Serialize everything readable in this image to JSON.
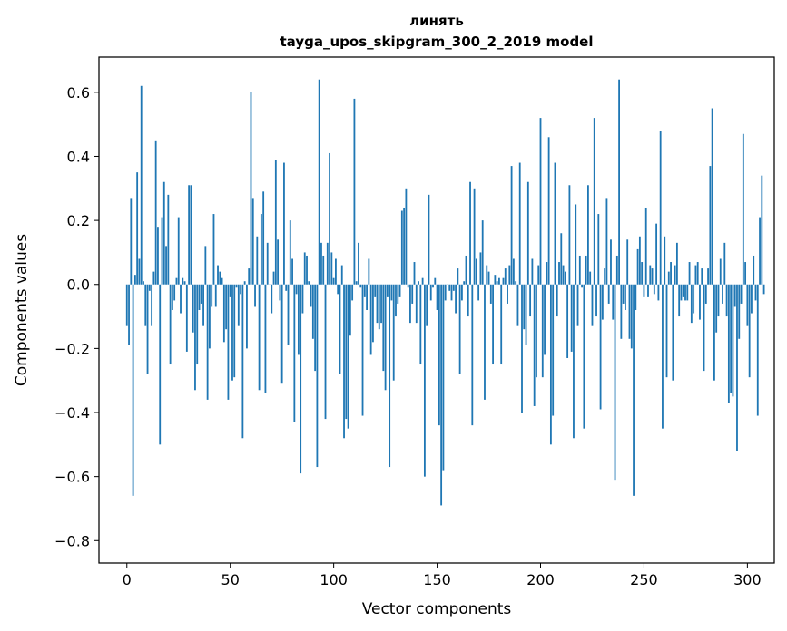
{
  "chart_data": {
    "type": "bar",
    "title": "линять",
    "subtitle": "tayga_upos_skipgram_300_2_2019 model",
    "xlabel": "Vector components",
    "ylabel": "Components values",
    "xlim": [
      -13.5,
      313
    ],
    "ylim": [
      -0.87,
      0.71
    ],
    "xticks": [
      0,
      50,
      100,
      150,
      200,
      250,
      300
    ],
    "xtick_labels": [
      "0",
      "50",
      "100",
      "150",
      "200",
      "250",
      "300"
    ],
    "yticks": [
      0.6,
      0.4,
      0.2,
      0.0,
      -0.2,
      -0.4,
      -0.6,
      -0.8
    ],
    "ytick_labels": [
      "0.6",
      "0.4",
      "0.2",
      "0.0",
      "−0.2",
      "−0.4",
      "−0.6",
      "−0.8"
    ],
    "bar_color": "#1f77b4",
    "grid": false,
    "values": [
      -0.13,
      -0.19,
      0.27,
      -0.66,
      0.03,
      0.35,
      0.08,
      0.62,
      0.01,
      -0.13,
      -0.28,
      -0.02,
      -0.13,
      0.04,
      0.45,
      0.18,
      -0.5,
      0.21,
      0.32,
      0.12,
      0.28,
      -0.25,
      -0.08,
      -0.05,
      0.02,
      0.21,
      -0.09,
      0.02,
      0.01,
      -0.21,
      0.31,
      0.31,
      -0.15,
      -0.33,
      -0.25,
      -0.08,
      -0.06,
      -0.13,
      0.12,
      -0.36,
      -0.2,
      -0.07,
      0.22,
      -0.07,
      0.06,
      0.04,
      0.02,
      -0.18,
      -0.14,
      -0.36,
      -0.04,
      -0.3,
      -0.29,
      -0.01,
      -0.13,
      -0.03,
      -0.48,
      0.01,
      -0.2,
      0.05,
      0.6,
      0.27,
      -0.07,
      0.15,
      -0.33,
      0.22,
      0.29,
      -0.34,
      0.13,
      0.0,
      -0.09,
      0.04,
      0.39,
      0.14,
      -0.05,
      -0.31,
      0.38,
      -0.02,
      -0.19,
      0.2,
      0.08,
      -0.43,
      -0.03,
      -0.22,
      -0.59,
      -0.09,
      0.1,
      0.09,
      0.01,
      -0.07,
      -0.17,
      -0.27,
      -0.57,
      0.64,
      0.13,
      0.09,
      -0.42,
      0.13,
      0.41,
      0.1,
      0.02,
      0.08,
      -0.03,
      -0.28,
      0.06,
      -0.48,
      -0.42,
      -0.45,
      -0.16,
      -0.05,
      0.58,
      0.01,
      0.13,
      -0.01,
      -0.41,
      -0.04,
      -0.08,
      0.08,
      -0.22,
      -0.18,
      -0.04,
      -0.12,
      -0.14,
      -0.12,
      -0.27,
      -0.33,
      -0.04,
      -0.57,
      -0.05,
      -0.3,
      -0.1,
      -0.06,
      -0.04,
      0.23,
      0.24,
      0.3,
      -0.01,
      -0.12,
      -0.06,
      0.07,
      -0.12,
      0.01,
      -0.25,
      0.02,
      -0.6,
      -0.13,
      0.28,
      -0.05,
      -0.01,
      0.02,
      -0.08,
      -0.44,
      -0.69,
      -0.58,
      -0.05,
      0.0,
      -0.02,
      -0.05,
      -0.02,
      -0.09,
      0.05,
      -0.28,
      -0.05,
      0.01,
      0.09,
      -0.1,
      0.32,
      -0.44,
      0.3,
      0.08,
      -0.05,
      0.1,
      0.2,
      -0.36,
      0.06,
      0.04,
      -0.06,
      -0.25,
      0.03,
      0.01,
      0.02,
      -0.25,
      0.02,
      0.05,
      -0.06,
      0.06,
      0.37,
      0.08,
      0.01,
      -0.13,
      0.38,
      -0.4,
      -0.14,
      -0.19,
      0.32,
      -0.1,
      0.08,
      -0.38,
      -0.29,
      0.06,
      0.52,
      -0.29,
      -0.22,
      0.07,
      0.46,
      -0.5,
      -0.41,
      0.38,
      -0.1,
      0.07,
      0.16,
      0.06,
      0.04,
      -0.23,
      0.31,
      -0.21,
      -0.48,
      0.25,
      -0.13,
      0.09,
      -0.01,
      -0.45,
      0.09,
      0.31,
      0.04,
      -0.13,
      0.52,
      -0.1,
      0.22,
      -0.39,
      -0.11,
      0.05,
      0.27,
      -0.06,
      0.14,
      -0.11,
      -0.61,
      0.09,
      0.64,
      -0.17,
      -0.06,
      -0.08,
      0.14,
      -0.17,
      -0.2,
      -0.66,
      -0.08,
      0.11,
      0.15,
      0.07,
      -0.04,
      0.24,
      -0.04,
      0.06,
      0.05,
      -0.03,
      0.19,
      -0.05,
      0.48,
      -0.45,
      0.15,
      -0.29,
      0.04,
      0.07,
      -0.3,
      0.06,
      0.13,
      -0.1,
      -0.05,
      -0.04,
      -0.05,
      -0.05,
      0.07,
      -0.12,
      -0.09,
      0.06,
      0.07,
      -0.11,
      0.05,
      -0.27,
      -0.06,
      0.05,
      0.37,
      0.55,
      -0.3,
      -0.15,
      -0.1,
      0.08,
      -0.06,
      0.13,
      -0.1,
      -0.37,
      -0.34,
      -0.35,
      -0.07,
      -0.52,
      -0.17,
      -0.06,
      0.47,
      0.07,
      -0.13,
      -0.29,
      -0.09,
      0.09,
      -0.05,
      -0.41,
      0.21,
      0.34,
      -0.03
    ]
  }
}
